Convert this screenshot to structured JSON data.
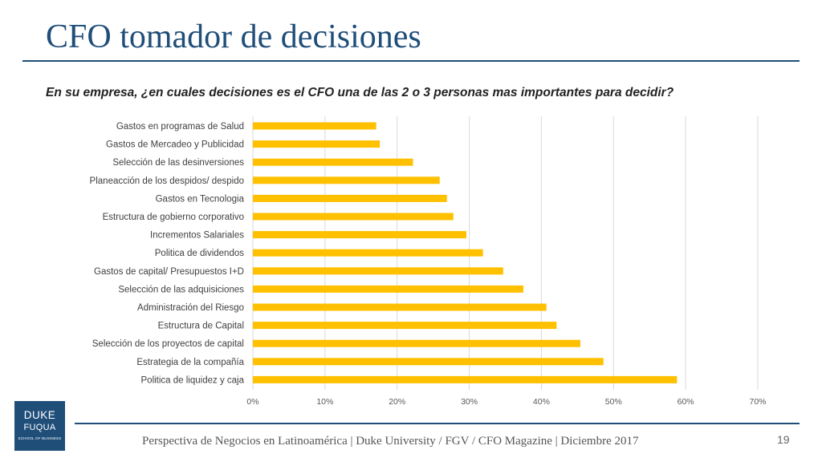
{
  "slide": {
    "title": "CFO tomador de decisiones",
    "question": "En su empresa, ¿en cuales decisiones es el CFO una de las 2 o 3 personas mas importantes para decidir?",
    "footer": "Perspectiva de Negocios en Latinoamérica | Duke University / FGV / CFO Magazine | Diciembre 2017",
    "page_number": "19",
    "logo": {
      "line1": "DUKE",
      "line2": "FUQUA",
      "line3": "SCHOOL OF BUSINESS"
    }
  },
  "colors": {
    "title": "#1f4e79",
    "bar": "#ffc000",
    "rule": "#1f4e79"
  },
  "chart_data": {
    "type": "bar",
    "orientation": "horizontal",
    "categories": [
      "Gastos en programas de Salud",
      "Gastos de Mercadeo y Publicidad",
      "Selección de las desinversiones",
      "Planeacción de los despidos/ despido",
      "Gastos en Tecnologia",
      "Estructura de gobierno corporativo",
      "Incrementos Salariales",
      "Politica de dividendos",
      "Gastos de capital/ Presupuestos I+D",
      "Selección de las adquisiciones",
      "Administración del Riesgo",
      "Estructura de Capital",
      "Selección de los proyectos de capital",
      "Estrategia de la compañía",
      "Politica de liquidez y caja"
    ],
    "values": [
      0.171,
      0.176,
      0.222,
      0.259,
      0.269,
      0.278,
      0.296,
      0.319,
      0.347,
      0.375,
      0.407,
      0.421,
      0.454,
      0.486,
      0.588
    ],
    "xlim": [
      0,
      0.7
    ],
    "xticks": [
      "0%",
      "10%",
      "20%",
      "30%",
      "40%",
      "50%",
      "60%",
      "70%"
    ],
    "grid": true,
    "legend": "none",
    "title": "",
    "xlabel": "",
    "ylabel": ""
  }
}
